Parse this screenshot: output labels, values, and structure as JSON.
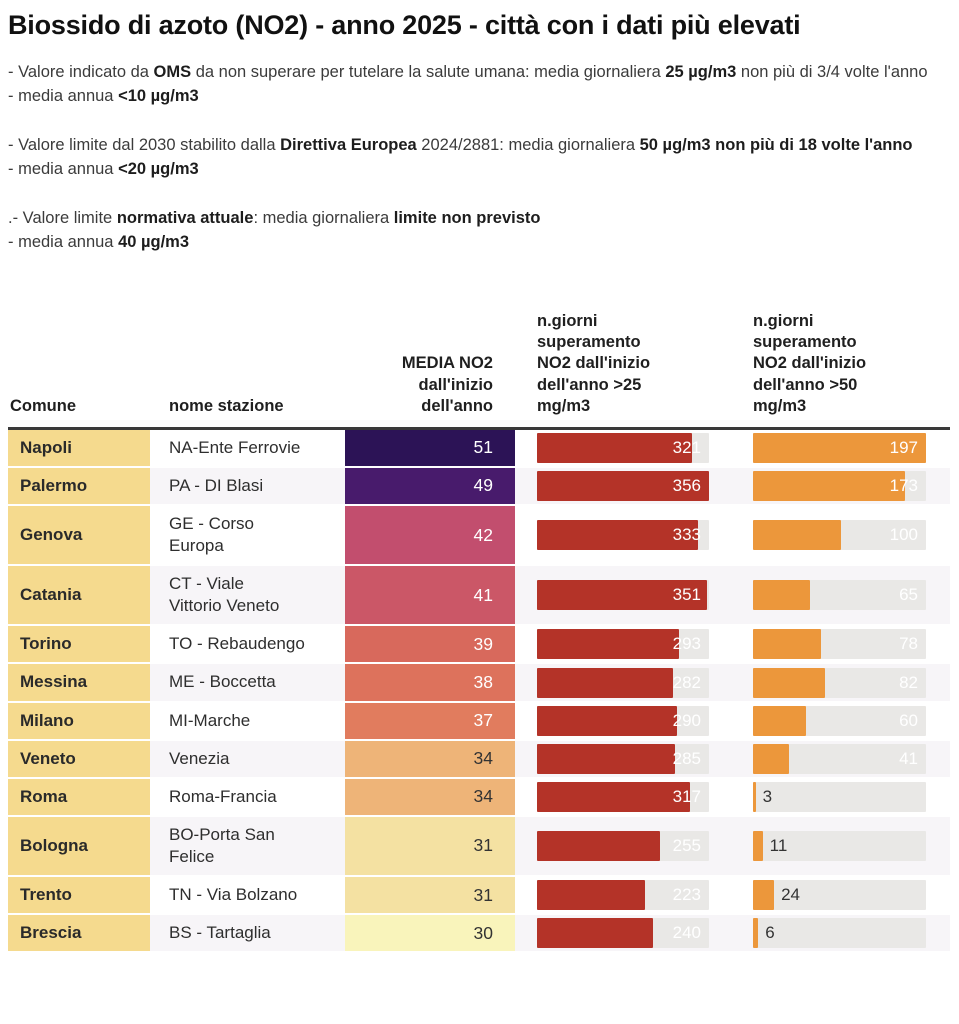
{
  "title": "Biossido di azoto (NO2) - anno 2025 - città con i dati più elevati",
  "intro": {
    "p1": {
      "line1": [
        {
          "text": "- Valore indicato da ",
          "bold": false
        },
        {
          "text": "OMS",
          "bold": true
        },
        {
          "text": " da non superare per tutelare la salute umana: media giornaliera ",
          "bold": false
        },
        {
          "text": "25 µg/m3",
          "bold": true
        },
        {
          "text": " non più di 3/4 volte l'anno",
          "bold": false
        }
      ],
      "line2": [
        {
          "text": "- media annua ",
          "bold": false
        },
        {
          "text": "<10 µg/m3",
          "bold": true
        }
      ]
    },
    "p2": {
      "line1": [
        {
          "text": "- Valore limite dal 2030 stabilito dalla ",
          "bold": false
        },
        {
          "text": "Direttiva Europea",
          "bold": true
        },
        {
          "text": " 2024/2881: media giornaliera ",
          "bold": false
        },
        {
          "text": "50 µg/m3 non più di 18 volte l'anno",
          "bold": true
        }
      ],
      "line2": [
        {
          "text": "- media annua ",
          "bold": false
        },
        {
          "text": "<20 µg/m3",
          "bold": true
        }
      ]
    },
    "p3": {
      "line1": [
        {
          "text": ".- Valore limite ",
          "bold": false
        },
        {
          "text": "normativa attuale",
          "bold": true
        },
        {
          "text": ": media giornaliera ",
          "bold": false
        },
        {
          "text": "limite non previsto",
          "bold": true
        }
      ],
      "line2": [
        {
          "text": "- media annua ",
          "bold": false
        },
        {
          "text": "40 µg/m3",
          "bold": true
        }
      ]
    }
  },
  "headers": {
    "comune": "Comune",
    "stazione": "nome stazione",
    "media": "MEDIA NO2\ndall'inizio\ndell'anno",
    "giorni25": "n.giorni\nsuperamento\nNO2 dall'inizio\ndell'anno >25\nmg/m3",
    "giorni50": "n.giorni\nsuperamento\nNO2 dall'inizio\ndell'anno >50\nmg/m3"
  },
  "colors": {
    "bar_red": "#b43328",
    "bar_orange": "#ec973b",
    "bar_track": "#e9e8e6",
    "comune_bg": "#f5da8e",
    "row_stripe": "#f7f5f8",
    "header_rule": "#3a3a3a",
    "label_light": "#ffffff",
    "label_dark": "#333333"
  },
  "chart_data": {
    "type": "table",
    "title": "Biossido di azoto (NO2) - anno 2025 - città con i dati più elevati",
    "columns": [
      "Comune",
      "nome stazione",
      "MEDIA NO2 dall'inizio dell'anno",
      "n.giorni superamento NO2 dall'inizio dell'anno >25 mg/m3",
      "n.giorni superamento NO2 dall'inizio dell'anno >50 mg/m3"
    ],
    "bar_columns": {
      "giorni25": {
        "max": 356,
        "color": "#b43328"
      },
      "giorni50": {
        "max": 197,
        "color": "#ec973b"
      }
    },
    "rows": [
      {
        "comune": "Napoli",
        "stazione": "NA-Ente Ferrovie",
        "media": 51,
        "media_color": "#2c1356",
        "media_text": "light",
        "giorni25": 321,
        "giorni50": 197
      },
      {
        "comune": "Palermo",
        "stazione": "PA - DI Blasi",
        "media": 49,
        "media_color": "#481b6c",
        "media_text": "light",
        "giorni25": 356,
        "giorni50": 173
      },
      {
        "comune": "Genova",
        "stazione": "GE - Corso\nEuropa",
        "media": 42,
        "media_color": "#c24e6e",
        "media_text": "light",
        "giorni25": 333,
        "giorni50": 100
      },
      {
        "comune": "Catania",
        "stazione": "CT - Viale\nVittorio Veneto",
        "media": 41,
        "media_color": "#cb5767",
        "media_text": "light",
        "giorni25": 351,
        "giorni50": 65
      },
      {
        "comune": "Torino",
        "stazione": "TO - Rebaudengo",
        "media": 39,
        "media_color": "#d8695c",
        "media_text": "light",
        "giorni25": 293,
        "giorni50": 78
      },
      {
        "comune": "Messina",
        "stazione": "ME - Boccetta",
        "media": 38,
        "media_color": "#dd725c",
        "media_text": "light",
        "giorni25": 282,
        "giorni50": 82
      },
      {
        "comune": "Milano",
        "stazione": "MI-Marche",
        "media": 37,
        "media_color": "#e17c5e",
        "media_text": "light",
        "giorni25": 290,
        "giorni50": 60
      },
      {
        "comune": "Veneto",
        "stazione": "Venezia",
        "media": 34,
        "media_color": "#eeb478",
        "media_text": "dark",
        "giorni25": 285,
        "giorni50": 41
      },
      {
        "comune": "Roma",
        "stazione": "Roma-Francia",
        "media": 34,
        "media_color": "#eeb478",
        "media_text": "dark",
        "giorni25": 317,
        "giorni50": 3
      },
      {
        "comune": "Bologna",
        "stazione": "BO-Porta San\nFelice",
        "media": 31,
        "media_color": "#f4e1a2",
        "media_text": "dark",
        "giorni25": 255,
        "giorni50": 11
      },
      {
        "comune": "Trento",
        "stazione": "TN - Via Bolzano",
        "media": 31,
        "media_color": "#f4e1a2",
        "media_text": "dark",
        "giorni25": 223,
        "giorni50": 24
      },
      {
        "comune": "Brescia",
        "stazione": "BS - Tartaglia",
        "media": 30,
        "media_color": "#f9f4bb",
        "media_text": "dark",
        "giorni25": 240,
        "giorni50": 6
      }
    ]
  }
}
